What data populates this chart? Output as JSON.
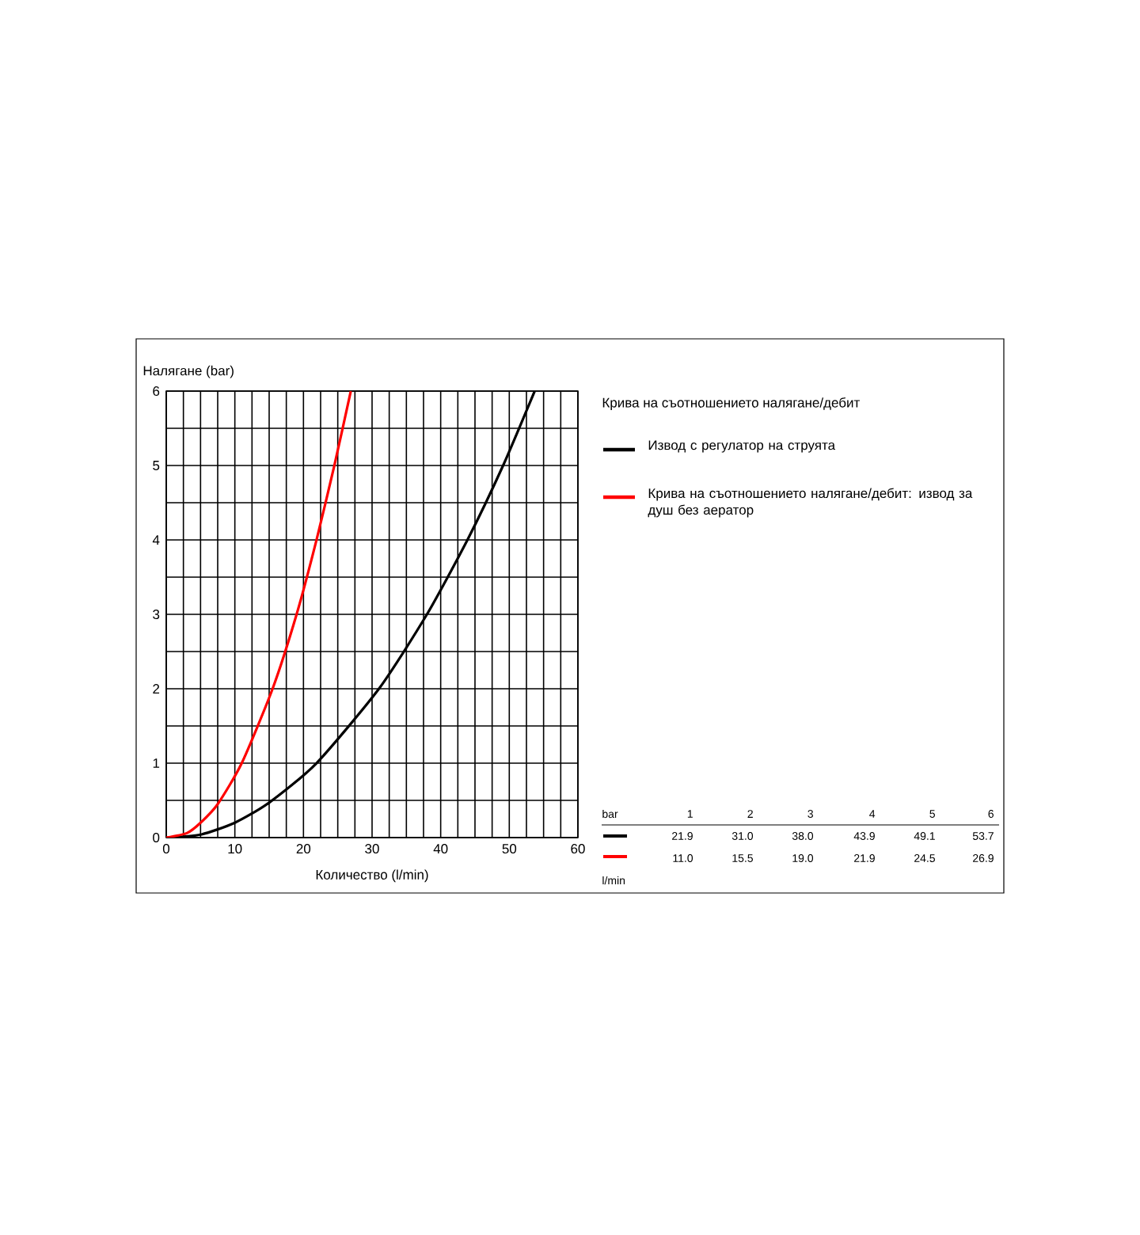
{
  "chart_data": {
    "type": "line",
    "legend_title": "Крива на съотношението налягане/дебит",
    "xlabel": "Количество (l/min)",
    "ylabel": "Налягане (bar)",
    "xlim": [
      0,
      60
    ],
    "ylim": [
      0,
      6
    ],
    "xticks": [
      0,
      {
        "value": 2.5,
        "label": null
      },
      {
        "value": 5,
        "label": null
      },
      {
        "value": 7.5,
        "label": null
      },
      10,
      {
        "value": 12.5,
        "label": null
      },
      {
        "value": 15,
        "label": null
      },
      {
        "value": 17.5,
        "label": null
      },
      20,
      {
        "value": 22.5,
        "label": null
      },
      {
        "value": 25,
        "label": null
      },
      {
        "value": 27.5,
        "label": null
      },
      30,
      {
        "value": 32.5,
        "label": null
      },
      {
        "value": 35,
        "label": null
      },
      {
        "value": 37.5,
        "label": null
      },
      40,
      {
        "value": 42.5,
        "label": null
      },
      {
        "value": 45,
        "label": null
      },
      {
        "value": 47.5,
        "label": null
      },
      50,
      {
        "value": 52.5,
        "label": null
      },
      {
        "value": 55,
        "label": null
      },
      {
        "value": 57.5,
        "label": null
      },
      60
    ],
    "yticks": [
      0,
      {
        "value": 0.5,
        "label": null
      },
      1,
      {
        "value": 1.5,
        "label": null
      },
      2,
      {
        "value": 2.5,
        "label": null
      },
      3,
      {
        "value": 3.5,
        "label": null
      },
      4,
      {
        "value": 4.5,
        "label": null
      },
      5,
      {
        "value": 5.5,
        "label": null
      },
      6
    ],
    "grid": true,
    "legend": "right",
    "annotations": [
      "bar",
      "1",
      "2",
      "3",
      "4",
      "5",
      "6",
      "21.9",
      "31.0",
      "38.0",
      "43.9",
      "49.1",
      "53.7",
      "11.0",
      "15.5",
      "19.0",
      "21.9",
      "24.5",
      "26.9",
      "l/min"
    ],
    "series": [
      {
        "name": "Извод с регулатор на струята",
        "color": "#000000",
        "x": [
          0,
          5,
          10,
          15,
          21.9,
          31.0,
          38.0,
          43.9,
          49.1,
          53.7
        ],
        "values": [
          0,
          0.04,
          0.2,
          0.47,
          1,
          2,
          3,
          4,
          5,
          6
        ]
      },
      {
        "name": "Крива на съотношението налягане/дебит: извод за душ без аератор",
        "color": "#ff0000",
        "x": [
          0,
          3,
          5,
          7.5,
          11.0,
          15.5,
          19.0,
          21.9,
          24.5,
          26.9
        ],
        "values": [
          0,
          0.06,
          0.2,
          0.45,
          1,
          2,
          3,
          4,
          5,
          6
        ]
      }
    ]
  }
}
